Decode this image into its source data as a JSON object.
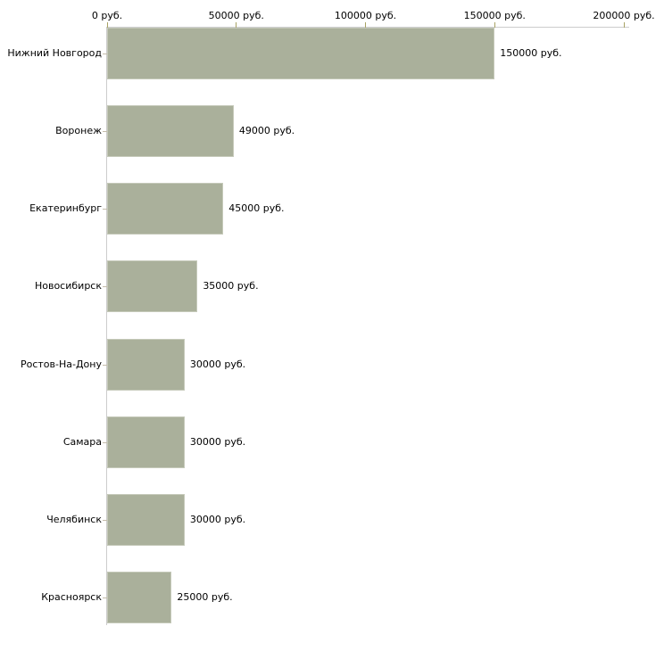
{
  "chart": {
    "background_color": "#ffffff",
    "bar_color": "#aab09b",
    "bar_border_color": "#c5c9b9",
    "axis_line_color": "#cccccc",
    "x_tick_color": "#a8a264",
    "y_tick_color": "#c4bcab",
    "text_color": "#000000"
  },
  "chart_data": {
    "type": "bar",
    "orientation": "horizontal",
    "title": "",
    "xlabel": "",
    "ylabel": "",
    "unit": "руб.",
    "categories": [
      "Нижний Новгород",
      "Воронеж",
      "Екатеринбург",
      "Новосибирск",
      "Ростов-На-Дону",
      "Самара",
      "Челябинск",
      "Красноярск"
    ],
    "values": [
      150000,
      49000,
      45000,
      35000,
      30000,
      30000,
      30000,
      25000
    ],
    "value_labels": [
      "150000 руб.",
      "49000 руб.",
      "45000 руб.",
      "35000 руб.",
      "30000 руб.",
      "30000 руб.",
      "30000 руб.",
      "25000 руб."
    ],
    "x_axis": {
      "position": "top",
      "min": 0,
      "max": 200000,
      "tick_values": [
        0,
        50000,
        100000,
        150000,
        200000
      ],
      "tick_labels": [
        "0 руб.",
        "50000 руб.",
        "100000 руб.",
        "150000 руб.",
        "200000 руб."
      ]
    },
    "grid": false,
    "legend": false
  }
}
